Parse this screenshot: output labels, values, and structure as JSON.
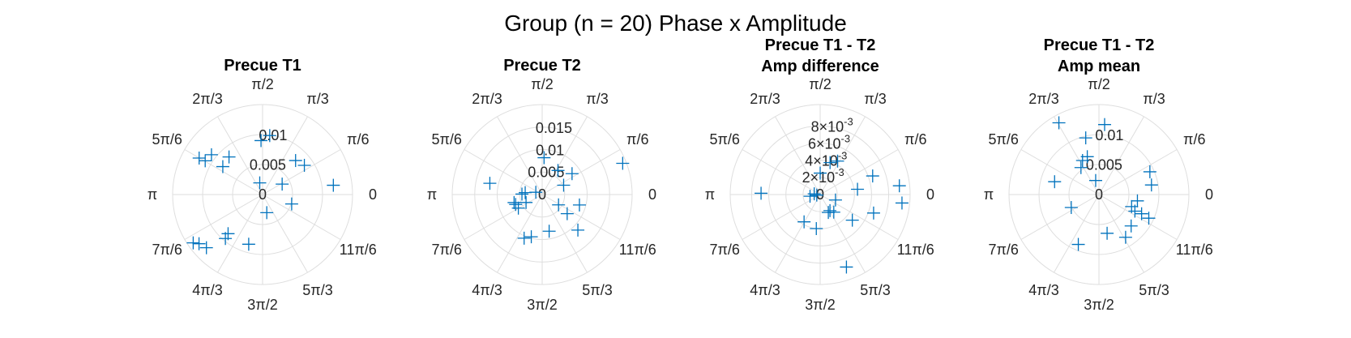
{
  "figure_title": "Group (n = 20) Phase x Amplitude",
  "marker_color": "#0072BD",
  "angle_labels": [
    "0",
    "π/6",
    "π/3",
    "π/2",
    "2π/3",
    "5π/6",
    "π",
    "7π/6",
    "4π/3",
    "3π/2",
    "5π/3",
    "11π/6"
  ],
  "chart_data": [
    {
      "type": "scatter",
      "coordinate_system": "polar",
      "title": [
        "Precue T1"
      ],
      "rlim": [
        0,
        0.015
      ],
      "r_ticks": [
        0,
        0.005,
        0.01
      ],
      "r_tick_labels": [
        "0",
        "0.005",
        "0.01"
      ],
      "theta_ticks_deg": [
        0,
        30,
        60,
        90,
        120,
        150,
        180,
        210,
        240,
        270,
        300,
        330
      ],
      "grid": true,
      "points": [
        {
          "theta": 1.45,
          "r": 0.0099
        },
        {
          "theta": 1.6,
          "r": 0.009
        },
        {
          "theta": 0.8,
          "r": 0.0079
        },
        {
          "theta": 0.61,
          "r": 0.0085
        },
        {
          "theta": 0.49,
          "r": 0.0037
        },
        {
          "theta": 0.13,
          "r": 0.0119
        },
        {
          "theta": 2.3,
          "r": 0.0084
        },
        {
          "theta": 2.53,
          "r": 0.0081
        },
        {
          "theta": 2.48,
          "r": 0.0108
        },
        {
          "theta": 2.61,
          "r": 0.0111
        },
        {
          "theta": 2.62,
          "r": 0.0122
        },
        {
          "theta": 1.81,
          "r": 0.002
        },
        {
          "theta": 5.97,
          "r": 0.0051
        },
        {
          "theta": 4.94,
          "r": 0.0031
        },
        {
          "theta": 4.44,
          "r": 0.0086
        },
        {
          "theta": 4.01,
          "r": 0.0096
        },
        {
          "theta": 3.99,
          "r": 0.0087
        },
        {
          "theta": 3.9,
          "r": 0.0129
        },
        {
          "theta": 3.8,
          "r": 0.0134
        },
        {
          "theta": 3.75,
          "r": 0.0141
        }
      ]
    },
    {
      "type": "scatter",
      "coordinate_system": "polar",
      "title": [
        "Precue T2"
      ],
      "rlim": [
        0,
        0.02
      ],
      "r_ticks": [
        0,
        0.005,
        0.01,
        0.015
      ],
      "r_tick_labels": [
        "0",
        "0.005",
        "0.01",
        "0.015"
      ],
      "theta_ticks_deg": [
        0,
        30,
        60,
        90,
        120,
        150,
        180,
        210,
        240,
        270,
        300,
        330
      ],
      "grid": true,
      "points": [
        {
          "theta": 0.37,
          "r": 0.0192
        },
        {
          "theta": 1.52,
          "r": 0.0082
        },
        {
          "theta": 0.99,
          "r": 0.0064
        },
        {
          "theta": 0.61,
          "r": 0.0081
        },
        {
          "theta": 0.41,
          "r": 0.0052
        },
        {
          "theta": 2.93,
          "r": 0.0119
        },
        {
          "theta": 3.03,
          "r": 0.0038
        },
        {
          "theta": 3.12,
          "r": 0.0045
        },
        {
          "theta": 3.6,
          "r": 0.004
        },
        {
          "theta": 5.72,
          "r": 0.0043
        },
        {
          "theta": 6.01,
          "r": 0.0086
        },
        {
          "theta": 5.63,
          "r": 0.007
        },
        {
          "theta": 5.5,
          "r": 0.0112
        },
        {
          "theta": 4.9,
          "r": 0.0083
        },
        {
          "theta": 4.46,
          "r": 0.0097
        },
        {
          "theta": 4.32,
          "r": 0.0105
        },
        {
          "theta": 3.66,
          "r": 0.0061
        },
        {
          "theta": 3.5,
          "r": 0.0063
        },
        {
          "theta": 3.42,
          "r": 0.0065
        },
        {
          "theta": 2.8,
          "r": 0.0015
        }
      ]
    },
    {
      "type": "scatter",
      "coordinate_system": "polar",
      "title": [
        "Precue T1 - T2",
        "Amp difference"
      ],
      "rlim": [
        0,
        0.0105
      ],
      "r_ticks": [
        0,
        0.002,
        0.004,
        0.006,
        0.008
      ],
      "r_tick_labels": [
        "0",
        "2",
        "4",
        "6",
        "8"
      ],
      "r_tick_exponent": "-3",
      "r_tick_multiplier": "×10",
      "theta_ticks_deg": [
        0,
        30,
        60,
        90,
        120,
        150,
        180,
        210,
        240,
        270,
        300,
        330
      ],
      "grid": true,
      "points": [
        {
          "theta": 0.11,
          "r": 0.0093
        },
        {
          "theta": 6.18,
          "r": 0.0096
        },
        {
          "theta": 5.95,
          "r": 0.0066
        },
        {
          "theta": 0.34,
          "r": 0.0065
        },
        {
          "theta": 1.09,
          "r": 0.0044
        },
        {
          "theta": 1.27,
          "r": 0.0039
        },
        {
          "theta": 1.57,
          "r": 0.0025
        },
        {
          "theta": 3.12,
          "r": 0.0069
        },
        {
          "theta": 3.02,
          "r": 0.0007
        },
        {
          "theta": 3.31,
          "r": 0.0012
        },
        {
          "theta": 4.18,
          "r": 0.0037
        },
        {
          "theta": 4.6,
          "r": 0.004
        },
        {
          "theta": 5.06,
          "r": 0.009
        },
        {
          "theta": 5.14,
          "r": 0.0023
        },
        {
          "theta": 5.37,
          "r": 0.0026
        },
        {
          "theta": 5.26,
          "r": 0.0022
        },
        {
          "theta": 5.61,
          "r": 0.0048
        },
        {
          "theta": 0.14,
          "r": 0.0044
        },
        {
          "theta": 5.94,
          "r": 0.0019
        },
        {
          "theta": 3.3,
          "r": 0.0004
        }
      ]
    },
    {
      "type": "scatter",
      "coordinate_system": "polar",
      "title": [
        "Precue T1 - T2",
        "Amp mean"
      ],
      "rlim": [
        0,
        0.015
      ],
      "r_ticks": [
        0,
        0.005,
        0.01
      ],
      "r_tick_labels": [
        "0",
        "0.005",
        "0.01"
      ],
      "theta_ticks_deg": [
        0,
        30,
        60,
        90,
        120,
        150,
        180,
        210,
        240,
        270,
        300,
        330
      ],
      "grid": true,
      "points": [
        {
          "theta": 1.49,
          "r": 0.0117
        },
        {
          "theta": 2.08,
          "r": 0.0137
        },
        {
          "theta": 1.8,
          "r": 0.0097
        },
        {
          "theta": 1.87,
          "r": 0.0066
        },
        {
          "theta": 2.02,
          "r": 0.0063
        },
        {
          "theta": 2.16,
          "r": 0.0054
        },
        {
          "theta": 1.8,
          "r": 0.0024
        },
        {
          "theta": 0.42,
          "r": 0.0093
        },
        {
          "theta": 0.18,
          "r": 0.0089
        },
        {
          "theta": 6.12,
          "r": 0.0065
        },
        {
          "theta": 5.85,
          "r": 0.0066
        },
        {
          "theta": 5.86,
          "r": 0.0078
        },
        {
          "theta": 5.93,
          "r": 0.0058
        },
        {
          "theta": 5.84,
          "r": 0.0092
        },
        {
          "theta": 5.51,
          "r": 0.0075
        },
        {
          "theta": 5.27,
          "r": 0.0084
        },
        {
          "theta": 4.92,
          "r": 0.0066
        },
        {
          "theta": 4.32,
          "r": 0.009
        },
        {
          "theta": 3.58,
          "r": 0.0051
        },
        {
          "theta": 2.86,
          "r": 0.0077
        }
      ]
    }
  ]
}
